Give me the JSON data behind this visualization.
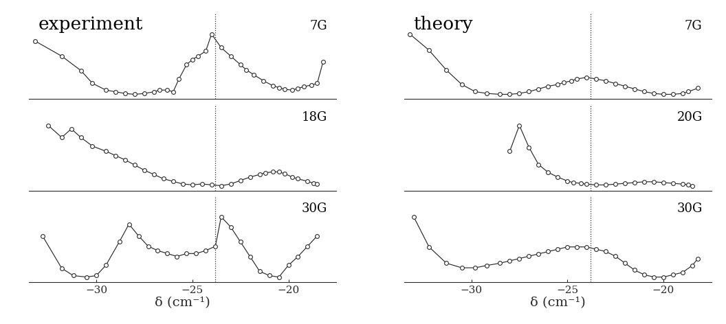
{
  "vline_x": -23.8,
  "xlim": [
    -33.5,
    -17.5
  ],
  "xticks": [
    -30,
    -25,
    -20
  ],
  "xlabel": "δ (cm⁻¹)",
  "bg_color": "#ffffff",
  "line_color": "#2a2a2a",
  "marker_color": "#ffffff",
  "marker_edge": "#2a2a2a",
  "exp_7G_x": [
    -33.2,
    -31.8,
    -30.8,
    -30.2,
    -29.5,
    -29.0,
    -28.5,
    -28.0,
    -27.5,
    -27.0,
    -26.7,
    -26.3,
    -26.0,
    -25.7,
    -25.3,
    -25.0,
    -24.7,
    -24.3,
    -24.0,
    -23.5,
    -23.0,
    -22.5,
    -22.2,
    -21.8,
    -21.3,
    -20.8,
    -20.5,
    -20.2,
    -19.8,
    -19.5,
    -19.2,
    -18.8,
    -18.5,
    -18.2
  ],
  "exp_7G_y": [
    0.8,
    0.62,
    0.45,
    0.3,
    0.22,
    0.2,
    0.18,
    0.17,
    0.18,
    0.2,
    0.22,
    0.22,
    0.2,
    0.35,
    0.52,
    0.58,
    0.62,
    0.68,
    0.88,
    0.72,
    0.62,
    0.52,
    0.46,
    0.4,
    0.33,
    0.27,
    0.25,
    0.23,
    0.22,
    0.24,
    0.26,
    0.28,
    0.3,
    0.55
  ],
  "exp_18G_x": [
    -32.5,
    -31.8,
    -31.3,
    -30.8,
    -30.2,
    -29.5,
    -29.0,
    -28.5,
    -28.0,
    -27.5,
    -27.0,
    -26.5,
    -26.0,
    -25.5,
    -25.0,
    -24.5,
    -24.0,
    -23.5,
    -23.0,
    -22.5,
    -22.0,
    -21.5,
    -21.2,
    -20.8,
    -20.5,
    -20.2,
    -19.8,
    -19.5,
    -19.0,
    -18.7,
    -18.5
  ],
  "exp_18G_y": [
    0.82,
    0.68,
    0.78,
    0.68,
    0.58,
    0.52,
    0.47,
    0.42,
    0.36,
    0.3,
    0.25,
    0.2,
    0.17,
    0.14,
    0.13,
    0.14,
    0.13,
    0.12,
    0.14,
    0.18,
    0.22,
    0.25,
    0.27,
    0.28,
    0.28,
    0.26,
    0.22,
    0.2,
    0.17,
    0.15,
    0.14
  ],
  "exp_30G_x": [
    -32.8,
    -31.8,
    -31.2,
    -30.5,
    -30.0,
    -29.5,
    -28.8,
    -28.3,
    -27.8,
    -27.3,
    -26.8,
    -26.3,
    -25.8,
    -25.3,
    -24.8,
    -24.3,
    -23.8,
    -23.5,
    -23.0,
    -22.5,
    -22.0,
    -21.5,
    -21.0,
    -20.5,
    -20.0,
    -19.5,
    -19.0,
    -18.5
  ],
  "exp_30G_y": [
    0.42,
    0.2,
    0.15,
    0.14,
    0.15,
    0.22,
    0.38,
    0.5,
    0.42,
    0.35,
    0.32,
    0.3,
    0.28,
    0.3,
    0.3,
    0.32,
    0.35,
    0.55,
    0.48,
    0.38,
    0.28,
    0.18,
    0.15,
    0.14,
    0.22,
    0.28,
    0.35,
    0.42
  ],
  "th_7G_x": [
    -33.2,
    -32.2,
    -31.3,
    -30.5,
    -29.8,
    -29.2,
    -28.5,
    -28.0,
    -27.5,
    -27.0,
    -26.5,
    -26.0,
    -25.5,
    -25.2,
    -24.8,
    -24.5,
    -24.0,
    -23.5,
    -23.0,
    -22.5,
    -22.0,
    -21.5,
    -21.0,
    -20.5,
    -20.0,
    -19.5,
    -19.0,
    -18.7,
    -18.2
  ],
  "th_7G_y": [
    0.78,
    0.6,
    0.38,
    0.22,
    0.14,
    0.12,
    0.11,
    0.11,
    0.12,
    0.14,
    0.17,
    0.2,
    0.22,
    0.24,
    0.26,
    0.28,
    0.3,
    0.28,
    0.26,
    0.23,
    0.2,
    0.17,
    0.14,
    0.12,
    0.11,
    0.11,
    0.12,
    0.14,
    0.18
  ],
  "th_20G_x": [
    -28.0,
    -27.5,
    -27.0,
    -26.5,
    -26.0,
    -25.5,
    -25.0,
    -24.7,
    -24.3,
    -24.0,
    -23.5,
    -23.0,
    -22.5,
    -22.0,
    -21.5,
    -21.0,
    -20.5,
    -20.0,
    -19.5,
    -19.0,
    -18.7,
    -18.5
  ],
  "th_20G_y": [
    0.55,
    0.88,
    0.6,
    0.38,
    0.28,
    0.22,
    0.17,
    0.15,
    0.14,
    0.13,
    0.12,
    0.12,
    0.13,
    0.14,
    0.15,
    0.16,
    0.16,
    0.15,
    0.14,
    0.13,
    0.12,
    0.11
  ],
  "th_30G_x": [
    -33.0,
    -32.2,
    -31.3,
    -30.5,
    -29.8,
    -29.2,
    -28.5,
    -28.0,
    -27.5,
    -27.0,
    -26.5,
    -26.0,
    -25.5,
    -25.0,
    -24.5,
    -24.0,
    -23.5,
    -23.0,
    -22.5,
    -22.0,
    -21.5,
    -21.0,
    -20.5,
    -20.0,
    -19.5,
    -19.0,
    -18.5,
    -18.2
  ],
  "th_30G_y": [
    0.38,
    0.25,
    0.18,
    0.16,
    0.16,
    0.17,
    0.18,
    0.19,
    0.2,
    0.21,
    0.22,
    0.23,
    0.24,
    0.25,
    0.25,
    0.25,
    0.24,
    0.23,
    0.21,
    0.18,
    0.15,
    0.13,
    0.12,
    0.12,
    0.13,
    0.14,
    0.17,
    0.2
  ],
  "labels_exp": [
    "7G",
    "18G",
    "30G"
  ],
  "labels_th": [
    "7G",
    "20G",
    "30G"
  ],
  "title_exp": "experiment",
  "title_th": "theory"
}
